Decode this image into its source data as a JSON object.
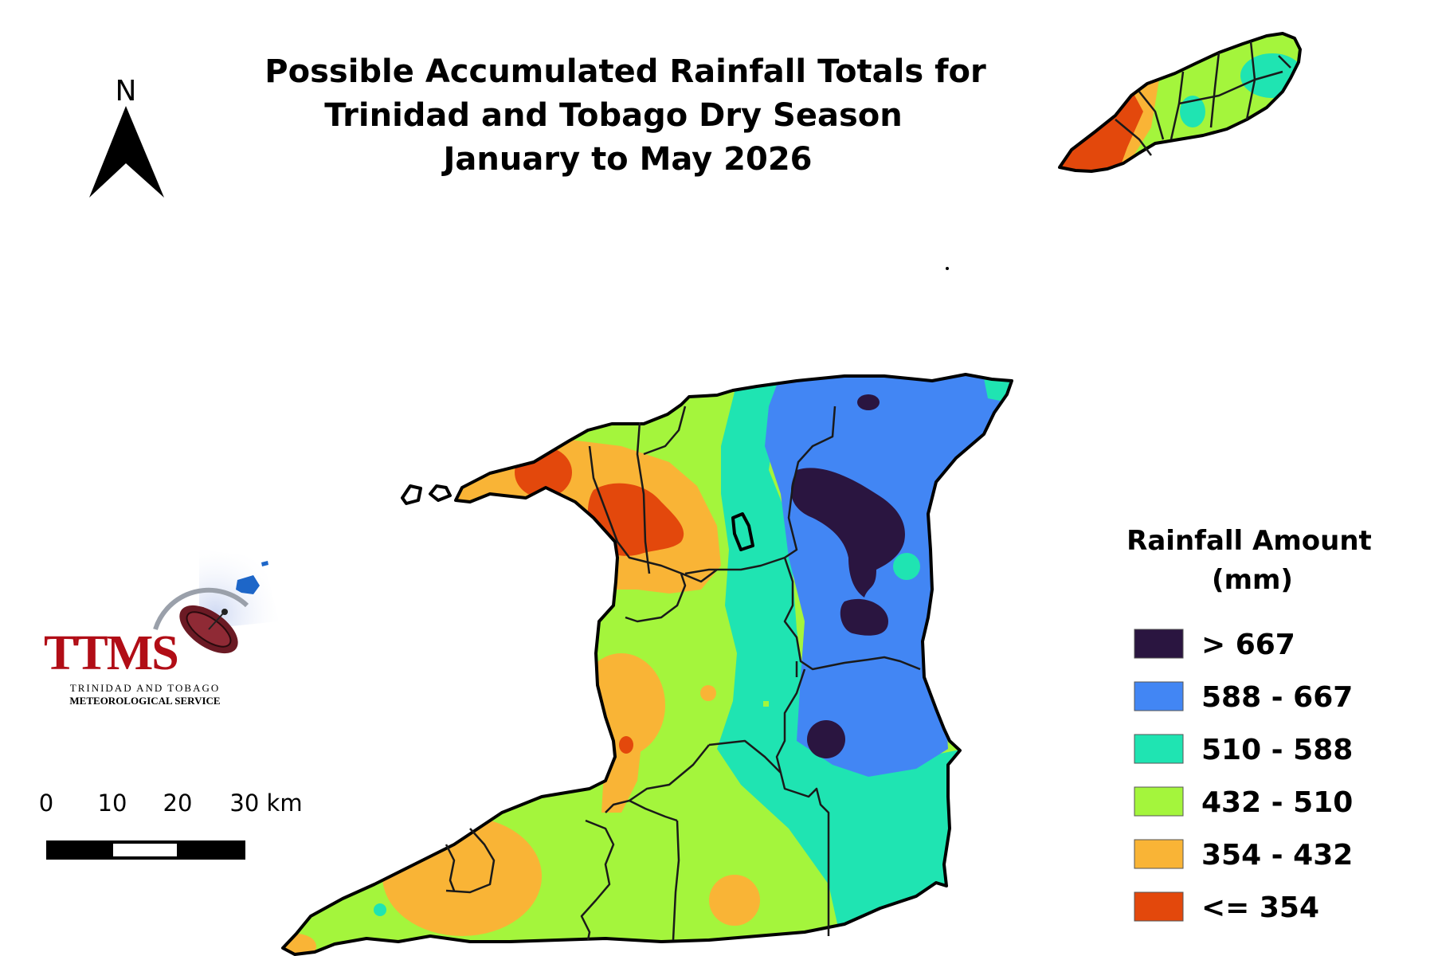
{
  "title": {
    "line1": "Possible Accumulated Rainfall Totals for",
    "line2": "Trinidad and Tobago Dry Season",
    "line3": "January to May 2026"
  },
  "north_arrow": {
    "label": "N"
  },
  "scale_bar": {
    "labels": [
      "0",
      "10",
      "20",
      "30 km"
    ]
  },
  "logo": {
    "acronym": "TTMS",
    "line1": "TRINIDAD AND TOBAGO",
    "line2": "METEOROLOGICAL SERVICE"
  },
  "legend": {
    "title_line1": "Rainfall Amount",
    "title_line2": "(mm)",
    "classes": [
      {
        "label": "> 667",
        "color": "#2a1540"
      },
      {
        "label": "588 - 667",
        "color": "#4286f4"
      },
      {
        "label": "510 - 588",
        "color": "#1fe4b2"
      },
      {
        "label": "432 - 510",
        "color": "#a4f53c"
      },
      {
        "label": "354 - 432",
        "color": "#f9b436"
      },
      {
        "label": "<= 354",
        "color": "#e3480c"
      }
    ]
  }
}
